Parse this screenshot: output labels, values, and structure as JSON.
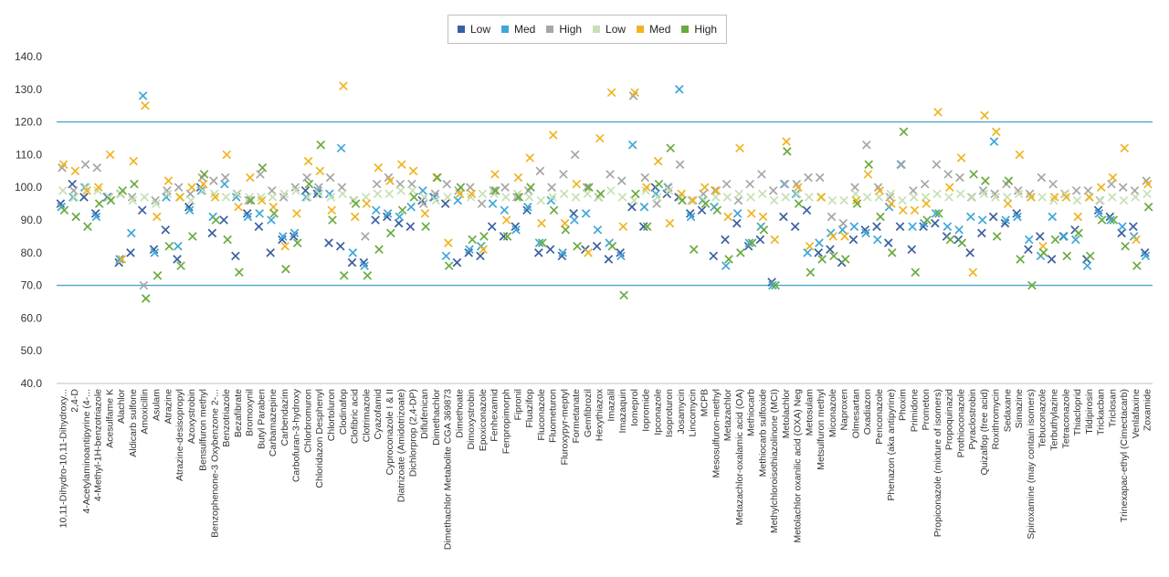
{
  "chart_data": {
    "type": "scatter",
    "title": "",
    "xlabel": "",
    "ylabel": "",
    "ylim": [
      40,
      140
    ],
    "yticks": [
      "40.0",
      "50.0",
      "60.0",
      "70.0",
      "80.0",
      "90.0",
      "100.0",
      "110.0",
      "120.0",
      "130.0",
      "140.0"
    ],
    "reference_lines": [
      70,
      120
    ],
    "reference_color": "#4aa8c8",
    "grid": false,
    "legend_position": "top-center",
    "categories": [
      "10,11-Dihydro-10,11-Dihydroxy...",
      "2,4-D",
      "4-Acetylaminoantipyrine (4-...",
      "4-Methyl-1H-benzotriazole",
      "Acesulfame K",
      "Alachlor",
      "Aldicarb sulfone",
      "Amoxicillin",
      "Asulam",
      "Atrazine",
      "Atrazine-desisopropyl",
      "Azoxystrobin",
      "Bensulfuron methyl",
      "Benzophenone-3 Oxybenzone 2-...",
      "Benzotriazole",
      "Bezafibrate",
      "Bromoxynil",
      "Butyl Paraben",
      "Carbamazepine",
      "Carbendazim",
      "Carbofuran-3-hydroxy",
      "Chlorbromuron",
      "Chloridazon Desphenyl",
      "Chlortoluron",
      "Clodinafop",
      "Clofibric acid",
      "Clotrimazole",
      "Cyazofamid",
      "Cyproconazole I & II",
      "Diatrizoate (Amidotrizoate)",
      "Dichlorprop (2,4-DP)",
      "Diflufenican",
      "Dimethachlor",
      "Dimethachlor Metabolite CGA 369873",
      "Dimethoate",
      "Dimoxystrobin",
      "Epoxiconazole",
      "Fenhexamid",
      "Fenpropimorph",
      "Fipronil",
      "Fluazifop",
      "Fluconazole",
      "Fluometuron",
      "Fluroxypyr-meptyl",
      "Formetanate",
      "Gemfibrozil",
      "Hexythiazox",
      "Imazalil",
      "Imazaquin",
      "Iomeprol",
      "Iopromide",
      "Ipconazole",
      "Isoproturon",
      "Josamycin",
      "Lincomycin",
      "MCPB",
      "Mesosulfuron-methyl",
      "Metazachlor",
      "Metazachlor-oxalamic acid (OA)",
      "Methiocarb",
      "Methiocarb sulfoxide",
      "Methylchloroisothiazolinone (MCI)",
      "Metolachlor",
      "Metolachlor oxanilic acid (OXA) Neg",
      "Metosulam",
      "Metsulfuron methyl",
      "Miconazole",
      "Naproxen",
      "Olmesartan",
      "Oxadiazon",
      "Penconazole",
      "Phenazon (aka antipyrine)",
      "Phoxim",
      "Primidone",
      "Prometon",
      "Propiconazole (mixture of isomers)",
      "Propoquinazid",
      "Prothioconazole",
      "Pyraclostrobin",
      "Quizalfop (free acid)",
      "Roxithromycin",
      "Sedaxane",
      "Simazine",
      "Spiroxamine (may contain isomers)",
      "Tebuconazole",
      "Terbuthylazine",
      "Tetraconazole",
      "Thiacloprid",
      "Tildipirosin",
      "Trickacban",
      "Triclosan",
      "Trinexapac-ethyl (Cimectacarb)",
      "Venlafaxine",
      "Zoxamide"
    ],
    "series": [
      {
        "name": "Low",
        "color": "#3a5fa0",
        "marker": "x",
        "values": [
          95,
          101,
          97,
          92,
          97,
          77,
          80,
          93,
          81,
          87,
          78,
          94,
          100,
          86,
          90,
          79,
          92,
          88,
          80,
          84,
          85,
          99,
          98,
          83,
          82,
          77,
          77,
          90,
          91,
          89,
          88,
          96,
          97,
          95,
          77,
          80,
          79,
          88,
          85,
          88,
          93,
          80,
          81,
          79,
          92,
          81,
          82,
          78,
          80,
          94,
          88,
          100,
          98,
          97,
          92,
          93,
          79,
          84,
          89,
          82,
          84,
          71,
          91,
          88,
          93,
          80,
          81,
          77,
          84,
          87,
          88,
          83,
          88,
          81,
          88,
          89,
          85,
          84,
          80,
          86,
          91,
          89,
          92,
          81,
          85,
          78,
          85,
          87,
          78,
          93,
          91,
          86,
          88,
          80
        ]
      },
      {
        "name": "Med",
        "color": "#3fa6d8",
        "marker": "x",
        "values": [
          94,
          97,
          100,
          91,
          97,
          78,
          86,
          128,
          80,
          97,
          82,
          93,
          99,
          91,
          101,
          97,
          91,
          92,
          90,
          85,
          86,
          97,
          99,
          98,
          112,
          80,
          76,
          93,
          92,
          91,
          94,
          99,
          97,
          79,
          96,
          81,
          82,
          95,
          93,
          87,
          94,
          83,
          96,
          80,
          90,
          92,
          87,
          83,
          79,
          113,
          94,
          98,
          100,
          130,
          91,
          96,
          94,
          76,
          92,
          83,
          88,
          70,
          101,
          98,
          80,
          83,
          86,
          87,
          88,
          86,
          84,
          94,
          107,
          88,
          89,
          92,
          88,
          87,
          91,
          90,
          114,
          90,
          91,
          84,
          79,
          91,
          85,
          84,
          76,
          92,
          90,
          88,
          85,
          79
        ]
      },
      {
        "name": "High",
        "color": "#a6a6a6",
        "marker": "x",
        "values": [
          106,
          99,
          107,
          106,
          97,
          98,
          97,
          70,
          96,
          99,
          100,
          98,
          103,
          102,
          103,
          98,
          96,
          104,
          99,
          97,
          100,
          103,
          100,
          103,
          100,
          96,
          85,
          101,
          103,
          101,
          101,
          95,
          98,
          101,
          99,
          100,
          95,
          99,
          100,
          97,
          99,
          105,
          100,
          104,
          110,
          100,
          97,
          104,
          102,
          128,
          103,
          95,
          100,
          107,
          96,
          98,
          99,
          101,
          96,
          101,
          104,
          99,
          101,
          101,
          103,
          103,
          91,
          89,
          100,
          113,
          100,
          97,
          107,
          99,
          101,
          107,
          104,
          103,
          97,
          99,
          98,
          101,
          99,
          98,
          103,
          101,
          98,
          99,
          99,
          96,
          101,
          100,
          99,
          102
        ]
      },
      {
        "name": "Low",
        "color": "#c6e0b4",
        "marker": "x",
        "values": [
          99,
          97,
          100,
          99,
          97,
          98,
          96,
          97,
          95,
          98,
          97,
          96,
          99,
          98,
          97,
          98,
          97,
          97,
          97,
          98,
          99,
          97,
          98,
          97,
          98,
          96,
          97,
          98,
          98,
          99,
          99,
          97,
          96,
          97,
          98,
          97,
          98,
          98,
          97,
          98,
          97,
          96,
          97,
          98,
          97,
          98,
          97,
          99,
          97,
          96,
          99,
          97,
          99,
          97,
          96,
          96,
          97,
          97,
          98,
          97,
          98,
          96,
          97,
          98,
          97,
          97,
          96,
          96,
          98,
          97,
          97,
          98,
          96,
          97,
          97,
          98,
          97,
          98,
          97,
          98,
          97,
          97,
          98,
          97,
          97,
          96,
          98,
          96,
          97,
          96,
          97,
          96,
          97,
          98
        ]
      },
      {
        "name": "Med",
        "color": "#f0b422",
        "marker": "x",
        "values": [
          107,
          105,
          99,
          100,
          110,
          78,
          108,
          125,
          91,
          102,
          97,
          100,
          101,
          97,
          110,
          94,
          103,
          96,
          94,
          82,
          92,
          108,
          105,
          93,
          131,
          91,
          95,
          106,
          102,
          107,
          105,
          92,
          103,
          83,
          98,
          98,
          81,
          104,
          90,
          103,
          109,
          89,
          116,
          89,
          101,
          80,
          115,
          129,
          88,
          129,
          100,
          108,
          89,
          98,
          96,
          100,
          99,
          91,
          112,
          92,
          91,
          84,
          114,
          100,
          82,
          97,
          85,
          85,
          96,
          104,
          99,
          95,
          93,
          93,
          95,
          123,
          100,
          109,
          74,
          122,
          117,
          95,
          110,
          97,
          82,
          97,
          97,
          91,
          97,
          100,
          103,
          112,
          84,
          101
        ]
      },
      {
        "name": "High",
        "color": "#6aaa3f",
        "marker": "x",
        "values": [
          93,
          91,
          88,
          95,
          96,
          99,
          101,
          66,
          73,
          82,
          76,
          85,
          104,
          90,
          84,
          74,
          96,
          106,
          92,
          75,
          83,
          101,
          113,
          90,
          73,
          95,
          73,
          81,
          86,
          93,
          97,
          88,
          103,
          76,
          100,
          84,
          85,
          99,
          85,
          97,
          100,
          83,
          93,
          87,
          82,
          100,
          98,
          82,
          67,
          98,
          88,
          101,
          112,
          96,
          81,
          95,
          93,
          78,
          80,
          83,
          87,
          70,
          111,
          95,
          74,
          78,
          79,
          78,
          95,
          107,
          91,
          80,
          117,
          74,
          90,
          92,
          84,
          83,
          104,
          102,
          85,
          102,
          78,
          70,
          80,
          84,
          79,
          86,
          79,
          90,
          90,
          82,
          76,
          94
        ]
      }
    ]
  }
}
